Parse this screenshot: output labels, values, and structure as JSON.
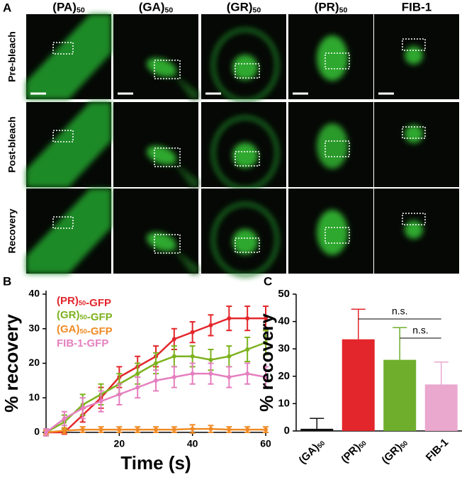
{
  "panel_a": {
    "label": "A",
    "columns": [
      "(PA)50",
      "(GA)50",
      "(GR)50",
      "(PR)50",
      "FIB-1"
    ],
    "rows": [
      "Pre-bleach",
      "Post-bleach",
      "Recovery"
    ]
  },
  "chart_data": [
    {
      "type": "line",
      "panel": "B",
      "x_label": "Time (s)",
      "y_label": "% recovery",
      "x": [
        0,
        5,
        10,
        15,
        20,
        25,
        30,
        35,
        40,
        45,
        50,
        55,
        60
      ],
      "xlim": [
        0,
        60
      ],
      "xticks": [
        20,
        40,
        60
      ],
      "ylim": [
        0,
        40
      ],
      "yticks": [
        0,
        10,
        20,
        30,
        40
      ],
      "series": [
        {
          "name": "(PR)50-GFP",
          "color": "#e3262b",
          "values": [
            0,
            0,
            5,
            10,
            16,
            19,
            22,
            27,
            29,
            31,
            33,
            33,
            33
          ],
          "errors": [
            0.5,
            0.5,
            2,
            3,
            3,
            3,
            3,
            3,
            3,
            3,
            3.5,
            3.5,
            3.5
          ]
        },
        {
          "name": "(GR)50-GFP",
          "color": "#7db21e",
          "values": [
            0,
            3,
            8,
            11,
            14,
            17,
            20,
            22,
            22,
            21,
            22,
            24,
            26
          ],
          "errors": [
            1,
            2,
            3,
            3,
            3,
            3,
            3,
            3,
            3,
            3,
            3,
            3.5,
            3.5
          ]
        },
        {
          "name": "(GA)50-GFP",
          "color": "#f08a24",
          "values": [
            0,
            0.5,
            0.8,
            0.8,
            0.8,
            0.8,
            0.8,
            0.8,
            1,
            1,
            0.8,
            0.8,
            0.8
          ],
          "errors": [
            0.5,
            0.8,
            0.8,
            0.8,
            0.8,
            0.8,
            0.8,
            0.8,
            1.2,
            1,
            0.8,
            0.8,
            0.8
          ]
        },
        {
          "name": "FIB-1-GFP",
          "color": "#e57fbf",
          "values": [
            0,
            4,
            7,
            9,
            11,
            13,
            15,
            16,
            17,
            17,
            16,
            17,
            16
          ],
          "errors": [
            1,
            2,
            3,
            3,
            3,
            3,
            3,
            3,
            3,
            3,
            3,
            3,
            3
          ]
        }
      ]
    },
    {
      "type": "bar",
      "panel": "C",
      "y_label": "% recovery",
      "categories": [
        "(GA)50",
        "(PR)50",
        "(GR)50",
        "FIB-1"
      ],
      "values": [
        0.8,
        33.5,
        26,
        17
      ],
      "errors": [
        3.8,
        11,
        11.8,
        8.2
      ],
      "colors": [
        "#111111",
        "#e3262b",
        "#6fae2c",
        "#eaa8cf"
      ],
      "ylim": [
        0,
        50
      ],
      "yticks": [
        0,
        10,
        20,
        30,
        40,
        50
      ],
      "annotations": [
        "n.s.",
        "n.s."
      ]
    }
  ]
}
